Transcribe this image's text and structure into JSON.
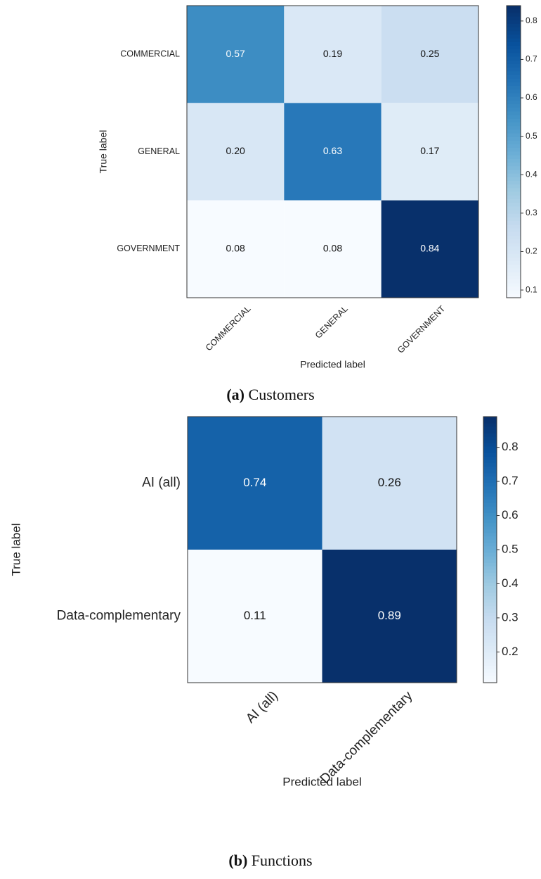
{
  "chart_data": [
    {
      "type": "heatmap",
      "subtype": "confusion-matrix",
      "title": "",
      "caption_tag": "(a)",
      "caption_text": "Customers",
      "xlabel": "Predicted label",
      "ylabel": "True label",
      "x_categories": [
        "COMMERCIAL",
        "GENERAL",
        "GOVERNMENT"
      ],
      "y_categories": [
        "COMMERCIAL",
        "GENERAL",
        "GOVERNMENT"
      ],
      "values": [
        [
          0.57,
          0.19,
          0.25
        ],
        [
          0.2,
          0.63,
          0.17
        ],
        [
          0.08,
          0.08,
          0.84
        ]
      ],
      "value_labels": [
        [
          "0.57",
          "0.19",
          "0.25"
        ],
        [
          "0.20",
          "0.63",
          "0.17"
        ],
        [
          "0.08",
          "0.08",
          "0.84"
        ]
      ],
      "colormap": "Blues",
      "colorbar_range": [
        0.08,
        0.84
      ],
      "colorbar_ticks": [
        "0.1",
        "0.2",
        "0.3",
        "0.4",
        "0.5",
        "0.6",
        "0.7",
        "0.8"
      ],
      "colorbar_tick_values": [
        0.1,
        0.2,
        0.3,
        0.4,
        0.5,
        0.6,
        0.7,
        0.8
      ],
      "legend": "colorbar-right",
      "grid": false
    },
    {
      "type": "heatmap",
      "subtype": "confusion-matrix",
      "title": "",
      "caption_tag": "(b)",
      "caption_text": "Functions",
      "xlabel": "Predicted label",
      "ylabel": "True label",
      "x_categories": [
        "AI (all)",
        "Data-complementary"
      ],
      "y_categories": [
        "AI (all)",
        "Data-complementary"
      ],
      "values": [
        [
          0.74,
          0.26
        ],
        [
          0.11,
          0.89
        ]
      ],
      "value_labels": [
        [
          "0.74",
          "0.26"
        ],
        [
          "0.11",
          "0.89"
        ]
      ],
      "colormap": "Blues",
      "colorbar_range": [
        0.11,
        0.89
      ],
      "colorbar_ticks": [
        "0.2",
        "0.3",
        "0.4",
        "0.5",
        "0.6",
        "0.7",
        "0.8"
      ],
      "colorbar_tick_values": [
        0.2,
        0.3,
        0.4,
        0.5,
        0.6,
        0.7,
        0.8
      ],
      "legend": "colorbar-right",
      "grid": false
    }
  ]
}
